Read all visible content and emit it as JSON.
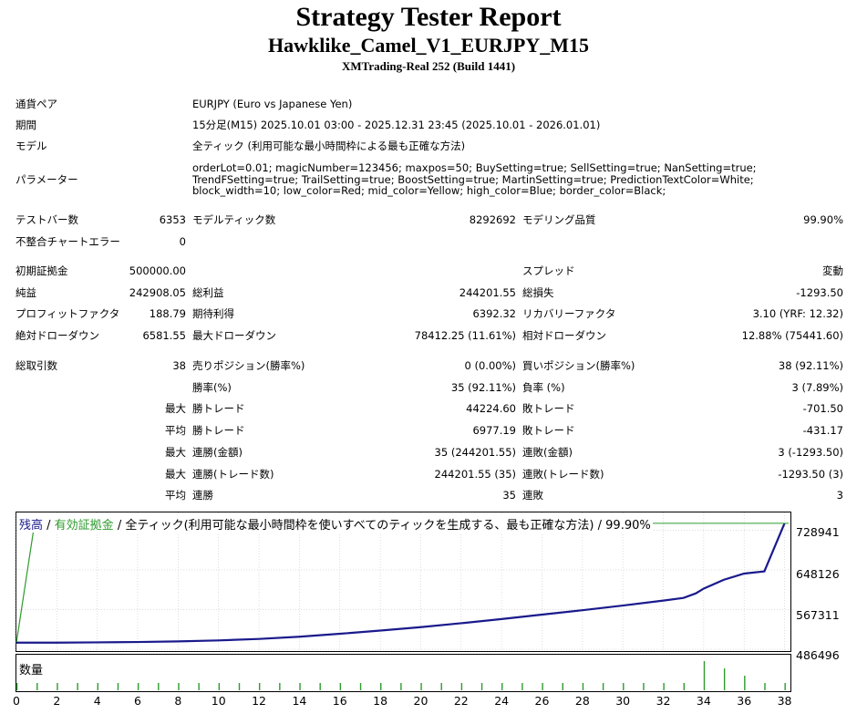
{
  "header": {
    "title": "Strategy Tester Report",
    "subtitle": "Hawklike_Camel_V1_EURJPY_M15",
    "server": "XMTrading-Real 252 (Build 1441)"
  },
  "info": {
    "symbol_label": "通貨ペア",
    "symbol_value": "EURJPY (Euro vs Japanese Yen)",
    "period_label": "期間",
    "period_value": "15分足(M15) 2025.10.01 03:00 - 2025.12.31 23:45 (2025.10.01 - 2026.01.01)",
    "model_label": "モデル",
    "model_value": "全ティック (利用可能な最小時間枠による最も正確な方法)",
    "params_label": "パラメーター",
    "params_value": "orderLot=0.01; magicNumber=123456; maxpos=50; BuySetting=true; SellSetting=true; NanSetting=true; TrendFSetting=true; TrailSetting=true; BoostSetting=true; MartinSetting=true; PredictionTextColor=White; block_width=10; low_color=Red; mid_color=Yellow; high_color=Blue; border_color=Black;"
  },
  "stats": {
    "bars_label": "テストバー数",
    "bars_value": "6353",
    "ticks_label": "モデルティック数",
    "ticks_value": "8292692",
    "quality_label": "モデリング品質",
    "quality_value": "99.90%",
    "errors_label": "不整合チャートエラー",
    "errors_value": "0",
    "deposit_label": "初期証拠金",
    "deposit_value": "500000.00",
    "spread_label": "スプレッド",
    "spread_value": "変動",
    "net_label": "純益",
    "net_value": "242908.05",
    "gross_profit_label": "総利益",
    "gross_profit_value": "244201.55",
    "gross_loss_label": "総損失",
    "gross_loss_value": "-1293.50",
    "pf_label": "プロフィットファクタ",
    "pf_value": "188.79",
    "payoff_label": "期待利得",
    "payoff_value": "6392.32",
    "recovery_label": "リカバリーファクタ",
    "recovery_value": "3.10 (YRF: 12.32)",
    "abs_dd_label": "絶対ドローダウン",
    "abs_dd_value": "6581.55",
    "max_dd_label": "最大ドローダウン",
    "max_dd_value": "78412.25 (11.61%)",
    "rel_dd_label": "相対ドローダウン",
    "rel_dd_value": "12.88% (75441.60)",
    "trades_label": "総取引数",
    "trades_value": "38",
    "short_label": "売りポジション(勝率%)",
    "short_value": "0 (0.00%)",
    "long_label": "買いポジション(勝率%)",
    "long_value": "38 (92.11%)",
    "win_rate_label": "勝率(%)",
    "win_rate_value": "35 (92.11%)",
    "loss_rate_label": "負率 (%)",
    "loss_rate_value": "3 (7.89%)",
    "max_word": "最大",
    "avg_word": "平均",
    "win_trade_label": "勝トレード",
    "max_win_value": "44224.60",
    "loss_trade_label": "敗トレード",
    "max_loss_value": "-701.50",
    "avg_win_value": "6977.19",
    "avg_loss_value": "-431.17",
    "cons_win_amt_label": "連勝(金額)",
    "cons_win_amt_value": "35 (244201.55)",
    "cons_loss_amt_label": "連敗(金額)",
    "cons_loss_amt_value": "3 (-1293.50)",
    "cons_win_cnt_label": "連勝(トレード数)",
    "cons_win_cnt_value": "244201.55 (35)",
    "cons_loss_cnt_label": "連敗(トレード数)",
    "cons_loss_cnt_value": "-1293.50 (3)",
    "avg_cons_win_label": "連勝",
    "avg_cons_win_value": "35",
    "avg_cons_loss_label": "連敗",
    "avg_cons_loss_value": "3"
  },
  "chart_data": {
    "type": "line",
    "legend": {
      "balance": "残高",
      "sep1": " / ",
      "equity": "有効証拠金",
      "sep2": " / ",
      "model": "全ティック(利用可能な最小時間枠を使いすべてのティックを生成する、最も正確な方法)",
      "sep3": " / ",
      "quality": "99.90%"
    },
    "y_ticks": [
      "728941",
      "648126",
      "567311",
      "486496"
    ],
    "ylim": [
      486496,
      750000
    ],
    "x_ticks": [
      "0",
      "2",
      "4",
      "6",
      "8",
      "10",
      "12",
      "14",
      "16",
      "18",
      "20",
      "22",
      "24",
      "26",
      "28",
      "30",
      "32",
      "34",
      "36",
      "38"
    ],
    "xlim": [
      0,
      38.2
    ],
    "series": [
      {
        "x": [
          0,
          2,
          4,
          6,
          8,
          10,
          12,
          14,
          16,
          18,
          20,
          22,
          24,
          26,
          28,
          30,
          32,
          33,
          33.6,
          34,
          35,
          36,
          37,
          38
        ],
        "values": [
          500000,
          500000,
          500500,
          501200,
          502500,
          504500,
          507500,
          512000,
          518000,
          524500,
          531500,
          539500,
          548000,
          557000,
          566000,
          575500,
          585500,
          591000,
          600000,
          610000,
          628000,
          640500,
          645000,
          742900
        ]
      }
    ],
    "equity_values": [
      500000,
      742900
    ],
    "equity_x": [
      0,
      0.9
    ],
    "volume": {
      "label": "数量",
      "x": [
        0,
        1,
        2,
        3,
        4,
        5,
        6,
        7,
        8,
        9,
        10,
        11,
        12,
        13,
        14,
        15,
        16,
        17,
        18,
        19,
        20,
        21,
        22,
        23,
        24,
        25,
        26,
        27,
        28,
        29,
        30,
        31,
        32,
        33,
        34,
        35,
        36,
        37,
        38
      ],
      "values": [
        1,
        1,
        1,
        1,
        1,
        1,
        1,
        1,
        1,
        1,
        1,
        1,
        1,
        1,
        1,
        1,
        1,
        1,
        1,
        1,
        1,
        1,
        1,
        1,
        1,
        1,
        1,
        1,
        1,
        1,
        1,
        1,
        1,
        1,
        4,
        3,
        2,
        1,
        1
      ]
    }
  }
}
